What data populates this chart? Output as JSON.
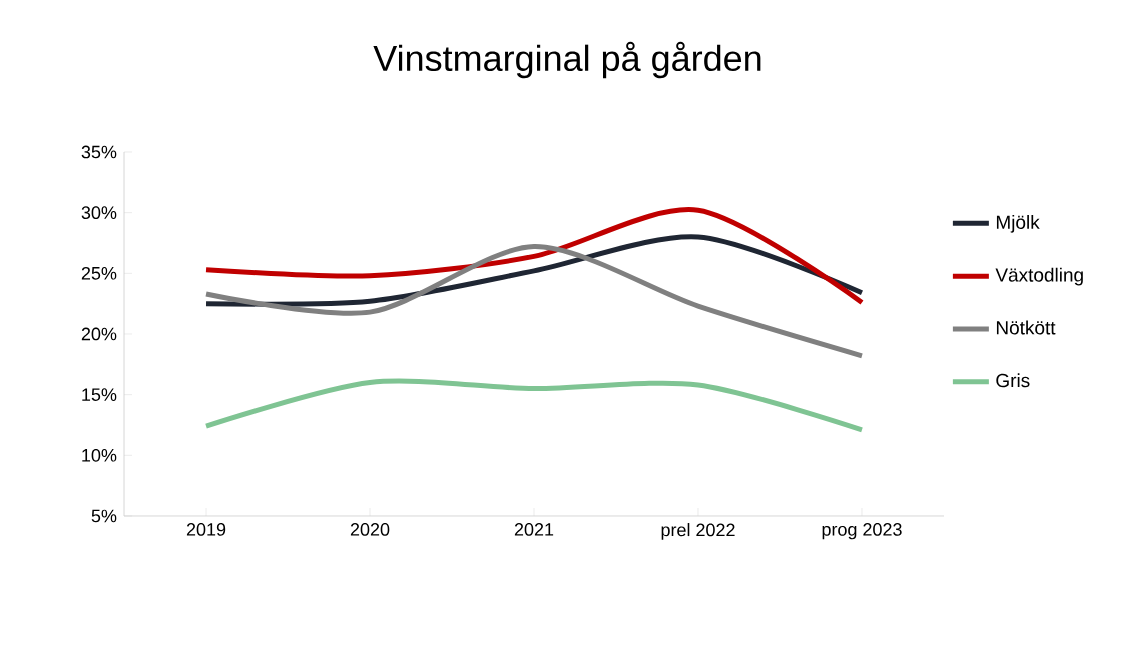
{
  "chart_data": {
    "type": "line",
    "title": "Vinstmarginal på gården",
    "categories": [
      "2019",
      "2020",
      "2021",
      "prel 2022",
      "prog 2023"
    ],
    "series": [
      {
        "name": "Mjölk",
        "color": "#1f2633",
        "values": [
          22.5,
          22.7,
          25.2,
          28,
          23.4
        ]
      },
      {
        "name": "Växtodling",
        "color": "#c00000",
        "values": [
          25.3,
          24.8,
          26.4,
          30.2,
          22.6
        ]
      },
      {
        "name": "Nötkött",
        "color": "#808080",
        "values": [
          23.3,
          21.8,
          27.2,
          22.3,
          18.2
        ]
      },
      {
        "name": "Gris",
        "color": "#7fc493",
        "values": [
          12.4,
          16,
          15.5,
          15.8,
          12.1
        ]
      }
    ],
    "ylim": [
      5,
      35
    ],
    "yticks": [
      {
        "value": 5,
        "label": "5%"
      },
      {
        "value": 10,
        "label": "10%"
      },
      {
        "value": 15,
        "label": "15%"
      },
      {
        "value": 20,
        "label": "20%"
      },
      {
        "value": 25,
        "label": "25%"
      },
      {
        "value": 30,
        "label": "30%"
      },
      {
        "value": 35,
        "label": "35%"
      }
    ],
    "grid": false,
    "legend": "right",
    "marker": "none",
    "line_style": "solid"
  }
}
